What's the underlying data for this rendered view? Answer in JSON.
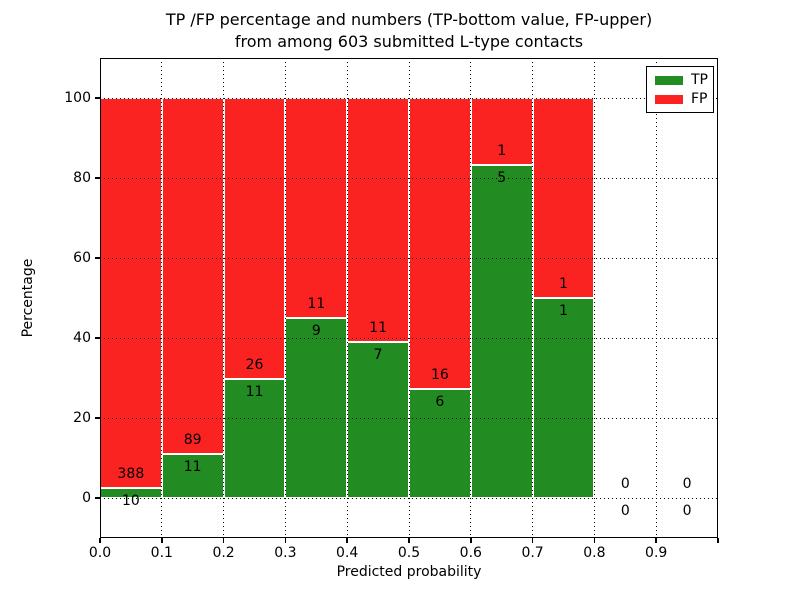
{
  "title": {
    "line1": "TP /FP percentage and numbers (TP-bottom value, FP-upper)",
    "line2": "from among 603 submitted L-type contacts"
  },
  "colors": {
    "tp_green": "#228b22",
    "fp_red": "#fb2222",
    "axis_black": "#000000",
    "background": "#ffffff"
  },
  "chart_data": {
    "type": "bar",
    "stacked": true,
    "title_line1": "TP /FP percentage and numbers (TP-bottom value, FP-upper)",
    "title_line2": "from among 603 submitted L-type contacts",
    "xlabel": "Predicted probability",
    "ylabel": "Percentage",
    "xlim": [
      0.0,
      1.0
    ],
    "ylim": [
      -10,
      110
    ],
    "grid": true,
    "legend_position": "upper right",
    "bin_width": 0.1,
    "categories": [
      "0.0-0.1",
      "0.1-0.2",
      "0.2-0.3",
      "0.3-0.4",
      "0.4-0.5",
      "0.5-0.6",
      "0.6-0.7",
      "0.7-0.8",
      "0.8-0.9",
      "0.9-1.0"
    ],
    "xtick_labels": [
      "0.0",
      "0.1",
      "0.2",
      "0.3",
      "0.4",
      "0.5",
      "0.6",
      "0.7",
      "0.8",
      "0.9"
    ],
    "ytick_values": [
      0,
      20,
      40,
      60,
      80,
      100
    ],
    "ytick_labels": [
      "0",
      "20",
      "40",
      "60",
      "80",
      "100"
    ],
    "series": [
      {
        "name": "TP",
        "color": "#228b22",
        "counts": [
          10,
          11,
          11,
          9,
          7,
          6,
          5,
          1,
          0,
          0
        ]
      },
      {
        "name": "FP",
        "color": "#fb2222",
        "counts": [
          388,
          89,
          26,
          11,
          11,
          16,
          1,
          1,
          0,
          0
        ]
      }
    ],
    "tp_percent_of_bin": [
      2.5,
      11.0,
      29.7,
      45.0,
      38.9,
      27.3,
      83.3,
      50.0,
      0,
      0
    ],
    "bar_total_height_percent": 100
  }
}
